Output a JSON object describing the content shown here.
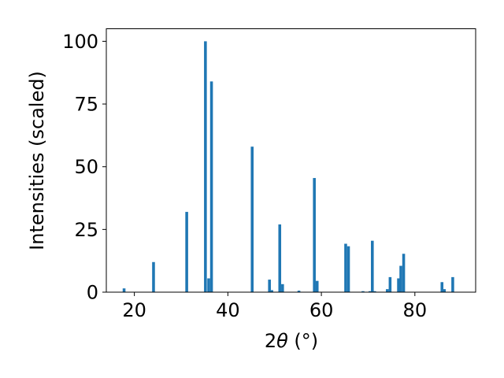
{
  "chart_data": {
    "type": "bar",
    "xlabel_prefix": "2",
    "xlabel_theta": "θ",
    "xlabel_unit": " (°)",
    "ylabel": "Intensities (scaled)",
    "xlim": [
      14,
      93
    ],
    "ylim": [
      0,
      105
    ],
    "grid": false,
    "bar_color": "#1f77b4",
    "bar_width": 0.6,
    "x_ticks": [
      20,
      40,
      60,
      80
    ],
    "y_ticks": [
      0,
      25,
      50,
      75,
      100
    ],
    "x": [
      17.8,
      24.1,
      31.2,
      35.2,
      35.9,
      36.5,
      45.2,
      48.9,
      49.4,
      51.1,
      51.7,
      55.2,
      58.5,
      59.1,
      65.2,
      65.8,
      68.9,
      70.4,
      70.9,
      71.4,
      74.1,
      74.7,
      76.5,
      77.0,
      77.6,
      85.8,
      86.3,
      88.1
    ],
    "values": [
      1.5,
      12,
      32,
      100,
      5.5,
      84,
      58,
      5,
      0.8,
      27,
      3.2,
      0.6,
      45.5,
      4.5,
      19.3,
      18.3,
      0.4,
      0.4,
      20.5,
      0.4,
      1.2,
      6,
      5.5,
      10.5,
      15.3,
      4,
      1.2,
      6
    ]
  }
}
